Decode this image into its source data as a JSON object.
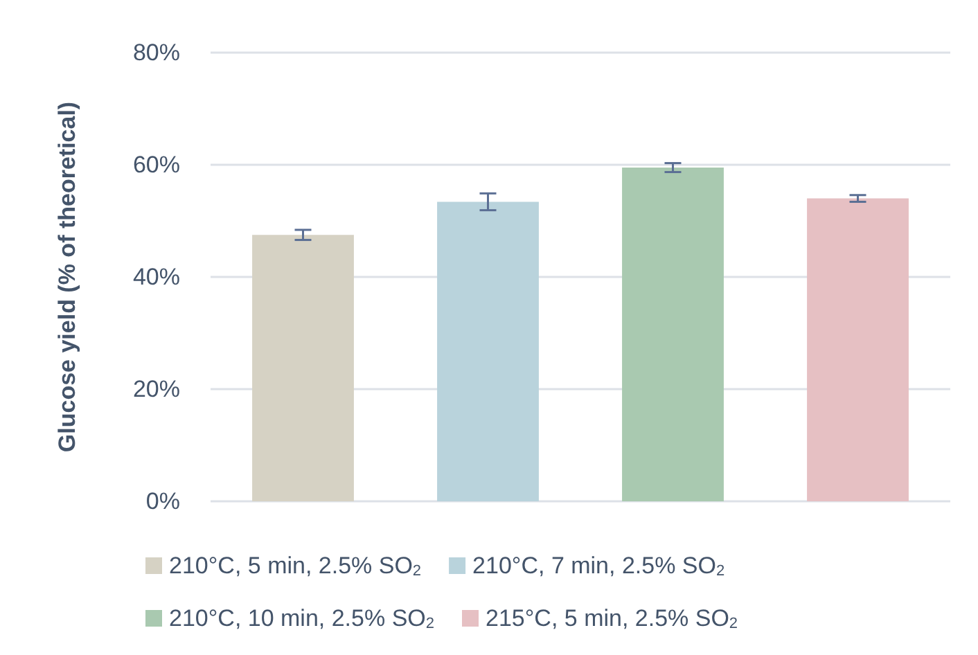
{
  "chart_data": {
    "type": "bar",
    "ylabel": "Glucose yield (% of theoretical)",
    "categories": [
      null,
      null,
      null,
      null
    ],
    "series": [
      {
        "name": "210°C, 5 min, 2.5% SO$_{2}$",
        "color": "#d6d2c4",
        "values": [
          47.5,
          null,
          null,
          null
        ],
        "errors": [
          0.9,
          null,
          null,
          null
        ]
      },
      {
        "name": "210°C, 7 min, 2.5% SO$_{2}$",
        "color": "#b9d3dc",
        "values": [
          null,
          53.4,
          null,
          null
        ],
        "errors": [
          null,
          1.5,
          null,
          null
        ]
      },
      {
        "name": "210°C, 10 min, 2.5% SO$_{2}$",
        "color": "#a9c9b0",
        "values": [
          null,
          null,
          59.5,
          null
        ],
        "errors": [
          null,
          null,
          0.8,
          null
        ]
      },
      {
        "name": "215°C, 5 min, 2.5% SO$_{2}$",
        "color": "#e6c0c3",
        "values": [
          null,
          null,
          null,
          54.0
        ],
        "errors": [
          null,
          null,
          null,
          0.6
        ]
      }
    ],
    "ylim": [
      0,
      80
    ],
    "yticks": [
      {
        "value": 0,
        "label": "0%"
      },
      {
        "value": 20,
        "label": "20%"
      },
      {
        "value": 40,
        "label": "40%"
      },
      {
        "value": 60,
        "label": "60%"
      },
      {
        "value": 80,
        "label": "80%"
      }
    ],
    "grid": "y",
    "legend": "bottom"
  }
}
